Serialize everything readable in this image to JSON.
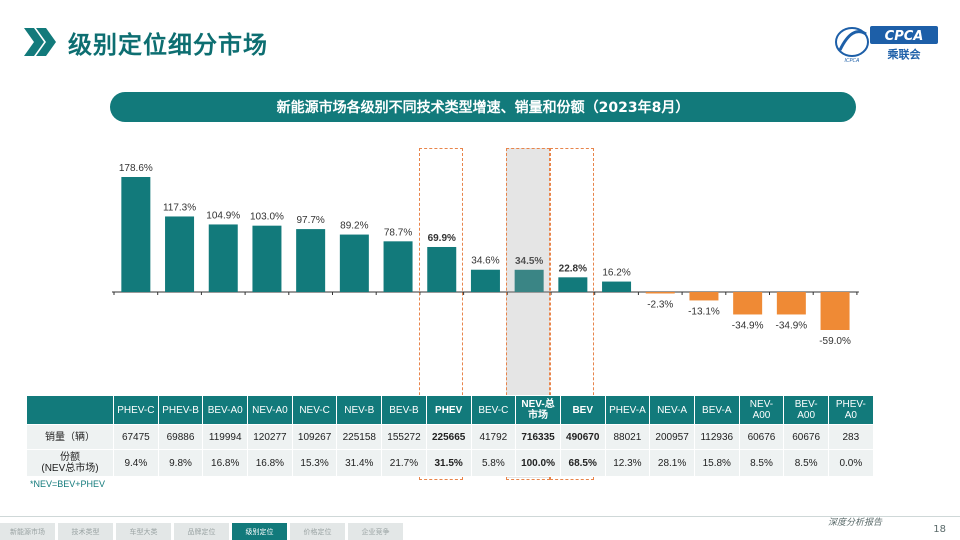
{
  "page": {
    "title": "级别定位细分市场",
    "logo_text": "CPCA",
    "logo_sub": "乘联会",
    "logo_tag": "ICPCA",
    "tagline": "深度分析报告",
    "page_number": "18",
    "footnote": "*NEV=BEV+PHEV"
  },
  "nav": [
    "新能源市场",
    "技术类型",
    "车型大类",
    "品牌定位",
    "级别定位",
    "价格定位",
    "企业竞争"
  ],
  "nav_active_index": 4,
  "colors": {
    "teal": "#127a7b",
    "orange": "#ef8a35",
    "highlight": "#e8844a"
  },
  "chart_data": {
    "type": "bar",
    "title": "新能源市场各级别不同技术类型增速、销量和份额（2023年8月）",
    "categories": [
      "PHEV-C",
      "PHEV-B",
      "BEV-A0",
      "NEV-A0",
      "NEV-C",
      "NEV-B",
      "BEV-B",
      "PHEV",
      "BEV-C",
      "NEV-总市场",
      "BEV",
      "PHEV-A",
      "NEV-A",
      "BEV-A",
      "NEV-A00",
      "BEV-A00",
      "PHEV-A0"
    ],
    "values": [
      178.6,
      117.3,
      104.9,
      103.0,
      97.7,
      89.2,
      78.7,
      69.9,
      34.6,
      34.5,
      22.8,
      16.2,
      -2.3,
      -13.1,
      -34.9,
      -34.9,
      -59.0
    ],
    "value_labels": [
      "178.6%",
      "117.3%",
      "104.9%",
      "103.0%",
      "97.7%",
      "89.2%",
      "78.7%",
      "69.9%",
      "34.6%",
      "34.5%",
      "22.8%",
      "16.2%",
      "-2.3%",
      "-13.1%",
      "-34.9%",
      "-34.9%",
      "-59.0%"
    ],
    "bold_labels": [
      7,
      9,
      10
    ],
    "highlight_dashed": [
      7,
      10
    ],
    "highlight_grey": [
      9
    ],
    "ylim": [
      -59.0,
      178.6
    ],
    "xlabel": "",
    "ylabel": ""
  },
  "table": {
    "columns": [
      "PHEV-C",
      "PHEV-B",
      "BEV-A0",
      "NEV-A0",
      "NEV-C",
      "NEV-B",
      "BEV-B",
      "PHEV",
      "BEV-C",
      "NEV-总\n市场",
      "BEV",
      "PHEV-A",
      "NEV-A",
      "BEV-A",
      "NEV-\nA00",
      "BEV-\nA00",
      "PHEV-\nA0"
    ],
    "rows": [
      {
        "label": "销量（辆）",
        "values": [
          "67475",
          "69886",
          "119994",
          "120277",
          "109267",
          "225158",
          "155272",
          "225665",
          "41792",
          "716335",
          "490670",
          "88021",
          "200957",
          "112936",
          "60676",
          "60676",
          "283"
        ]
      },
      {
        "label": "份额\n(NEV总市场)",
        "values": [
          "9.4%",
          "9.8%",
          "16.8%",
          "16.8%",
          "15.3%",
          "31.4%",
          "21.7%",
          "31.5%",
          "5.8%",
          "100.0%",
          "68.5%",
          "12.3%",
          "28.1%",
          "15.8%",
          "8.5%",
          "8.5%",
          "0.0%"
        ]
      }
    ],
    "bold_columns": [
      7,
      9,
      10
    ]
  }
}
